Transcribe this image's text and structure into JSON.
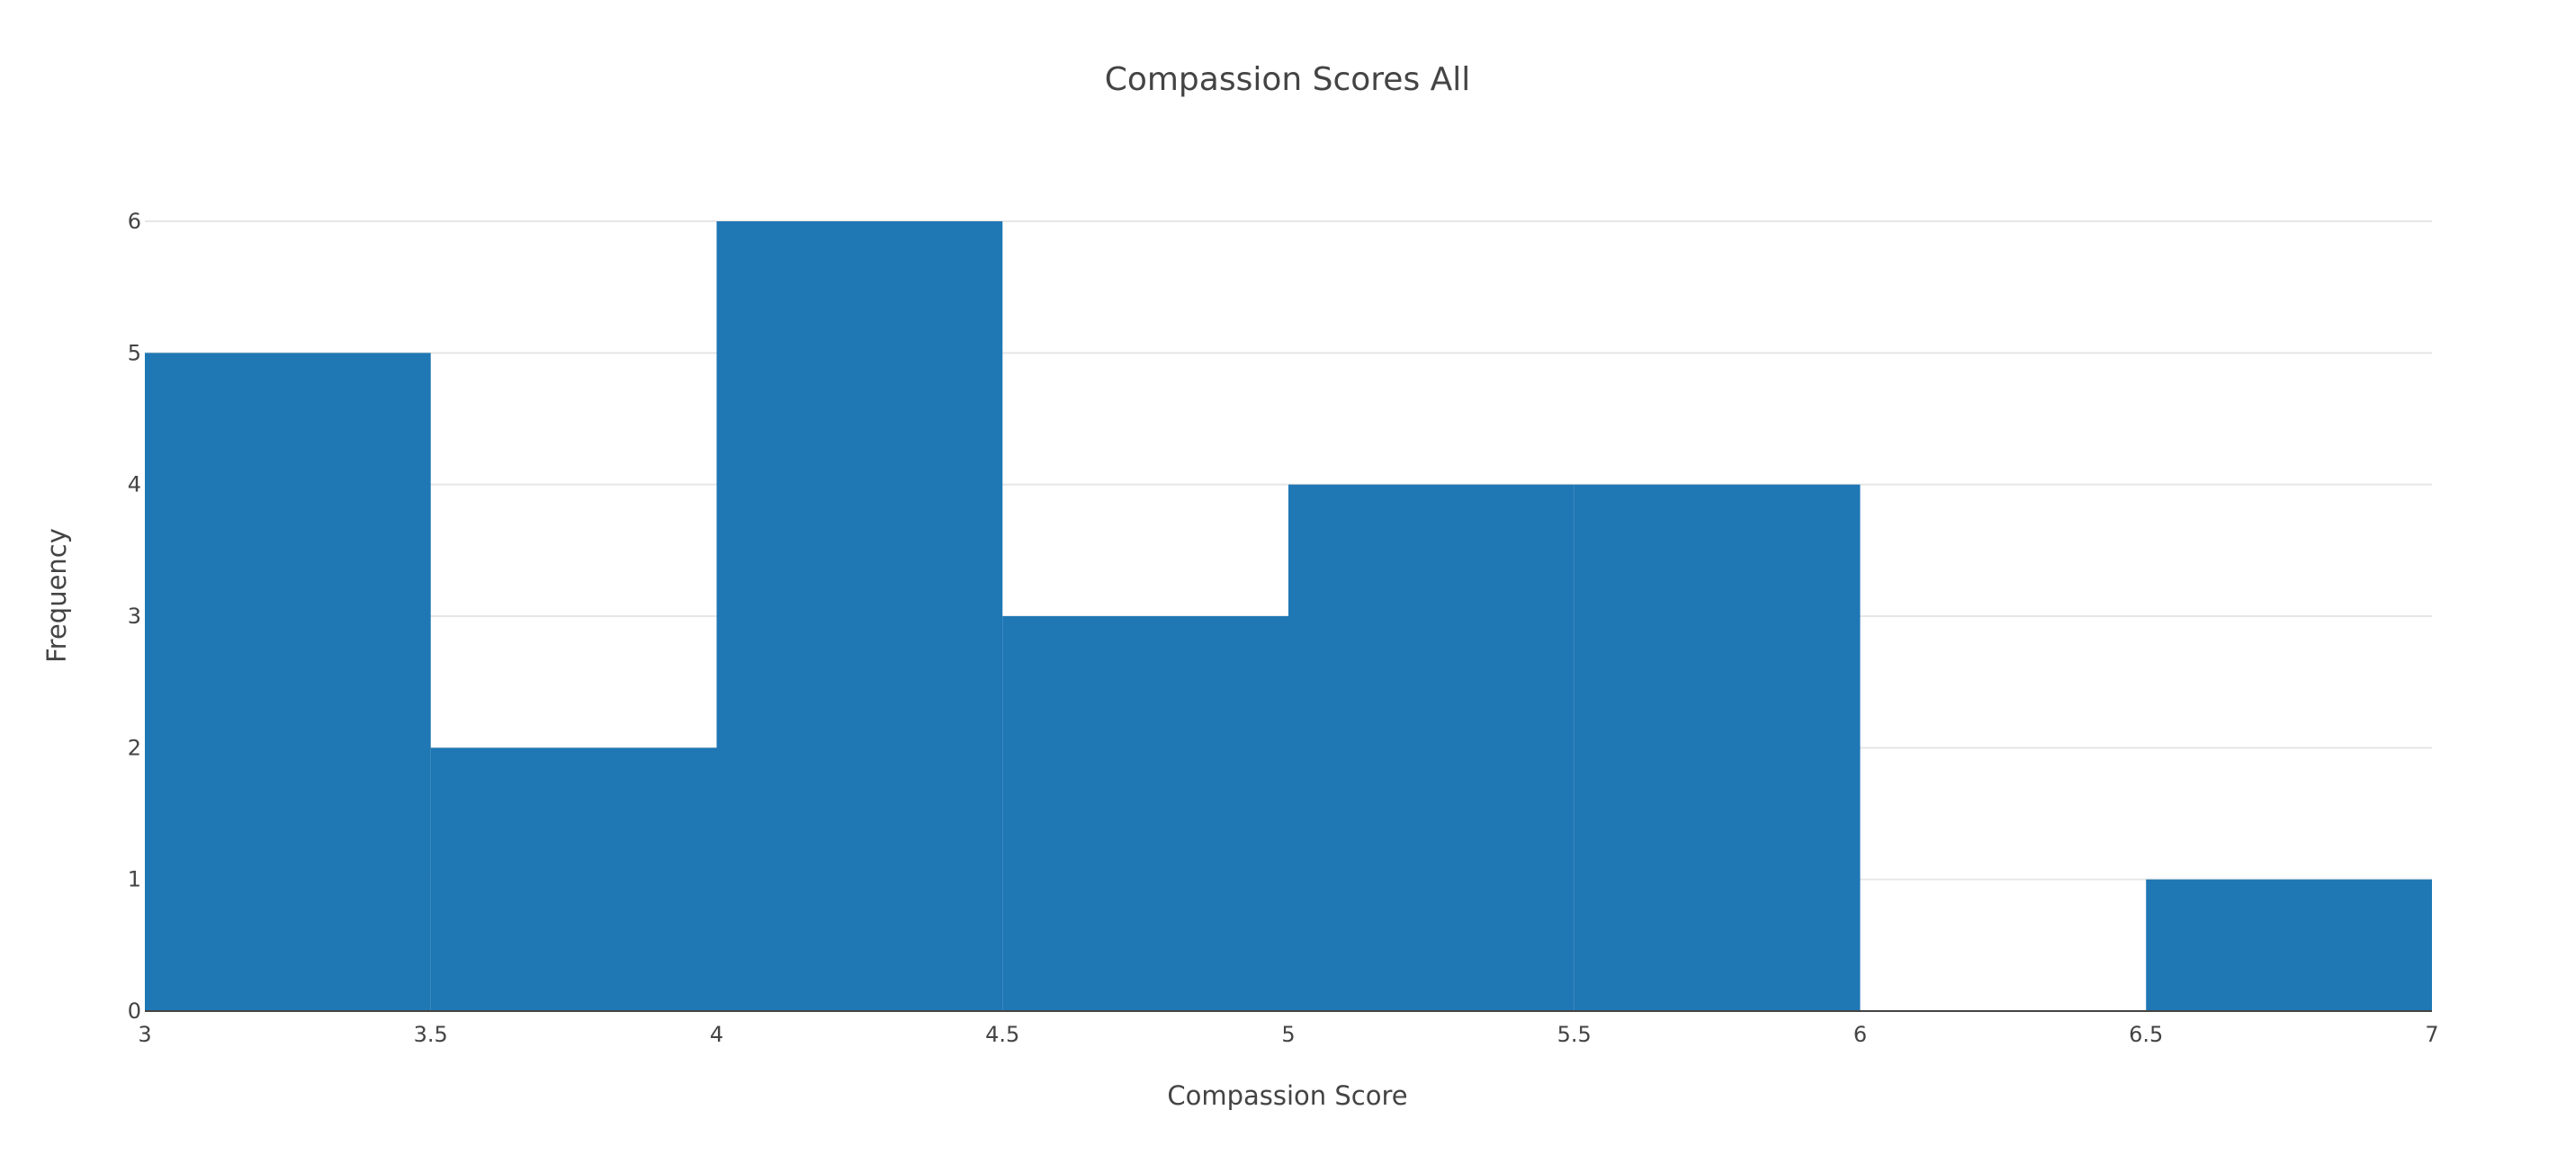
{
  "chart_data": {
    "type": "bar",
    "title": "Compassion Scores All",
    "xlabel": "Compassion Score",
    "ylabel": "Frequency",
    "bins": [
      {
        "start": 3.0,
        "end": 3.5,
        "count": 5
      },
      {
        "start": 3.5,
        "end": 4.0,
        "count": 2
      },
      {
        "start": 4.0,
        "end": 4.5,
        "count": 6
      },
      {
        "start": 4.5,
        "end": 5.0,
        "count": 3
      },
      {
        "start": 5.0,
        "end": 5.5,
        "count": 4
      },
      {
        "start": 5.5,
        "end": 6.0,
        "count": 4
      },
      {
        "start": 6.0,
        "end": 6.5,
        "count": 0
      },
      {
        "start": 6.5,
        "end": 7.0,
        "count": 1
      }
    ],
    "xlim": [
      3,
      7
    ],
    "ylim": [
      0,
      6
    ],
    "xticks": [
      "3",
      "3.5",
      "4",
      "4.5",
      "5",
      "5.5",
      "6",
      "6.5",
      "7"
    ],
    "yticks": [
      "0",
      "1",
      "2",
      "3",
      "4",
      "5",
      "6"
    ],
    "bar_color": "#1f77b4",
    "grid": true,
    "legend": "none"
  }
}
